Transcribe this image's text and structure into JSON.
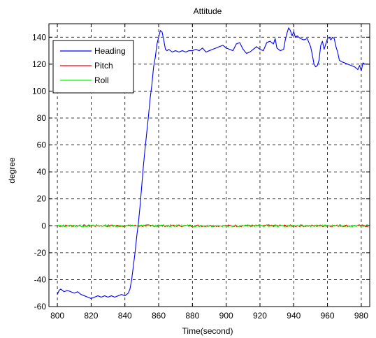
{
  "chart_data": {
    "type": "line",
    "title": "Attitude",
    "xlabel": "Time(second)",
    "ylabel": "degree",
    "xlim": [
      795,
      985
    ],
    "ylim": [
      -60,
      150
    ],
    "xticks": [
      800,
      820,
      840,
      860,
      880,
      900,
      920,
      940,
      960,
      980
    ],
    "yticks": [
      -60,
      -40,
      -20,
      0,
      20,
      40,
      60,
      80,
      100,
      120,
      140
    ],
    "grid": true,
    "legend_position": "top-left",
    "series": [
      {
        "name": "Heading",
        "color": "#0000ff",
        "x": [
          800,
          801,
          802,
          804,
          806,
          808,
          810,
          812,
          814,
          816,
          818,
          820,
          822,
          824,
          826,
          828,
          830,
          832,
          834,
          836,
          838,
          840,
          841,
          842,
          843,
          844,
          845,
          846,
          847,
          848,
          849,
          850,
          851,
          852,
          853,
          854,
          855,
          856,
          857,
          858,
          859,
          860,
          861,
          862,
          863,
          864,
          865,
          866,
          868,
          870,
          872,
          874,
          876,
          878,
          880,
          882,
          884,
          886,
          888,
          890,
          892,
          894,
          896,
          898,
          900,
          902,
          904,
          906,
          908,
          910,
          912,
          914,
          916,
          918,
          920,
          922,
          924,
          926,
          928,
          929,
          930,
          932,
          934,
          935,
          936,
          937,
          938,
          939,
          940,
          941,
          942,
          944,
          946,
          948,
          950,
          951,
          952,
          953,
          954,
          955,
          956,
          957,
          958,
          959,
          960,
          961,
          962,
          963,
          964,
          965,
          966,
          967,
          968,
          970,
          972,
          974,
          976,
          978,
          979,
          980,
          981,
          982,
          983,
          984
        ],
        "y": [
          -51,
          -48,
          -47,
          -49,
          -48,
          -49,
          -50,
          -49,
          -51,
          -52,
          -53,
          -54,
          -53,
          -52,
          -53,
          -52,
          -53,
          -52,
          -53,
          -52,
          -51,
          -52,
          -51,
          -50,
          -47,
          -40,
          -30,
          -20,
          -8,
          2,
          15,
          30,
          45,
          58,
          70,
          82,
          95,
          105,
          118,
          125,
          135,
          140,
          145,
          144,
          138,
          131,
          130,
          131,
          129,
          130,
          129,
          130,
          129,
          130,
          130,
          131,
          130,
          132,
          129,
          130,
          131,
          132,
          133,
          134,
          132,
          131,
          130,
          135,
          136,
          131,
          128,
          129,
          131,
          133,
          131,
          130,
          136,
          137,
          135,
          139,
          132,
          130,
          131,
          138,
          143,
          147,
          145,
          141,
          144,
          140,
          141,
          139,
          138,
          139,
          133,
          127,
          120,
          118,
          119,
          123,
          134,
          137,
          131,
          135,
          139,
          140,
          138,
          140,
          139,
          133,
          129,
          123,
          122,
          121,
          120,
          119,
          118,
          116,
          119,
          115,
          121,
          120,
          120,
          120
        ]
      },
      {
        "name": "Pitch",
        "color": "#ff0000",
        "x": [
          800,
          984
        ],
        "y": [
          0,
          0
        ]
      },
      {
        "name": "Roll",
        "color": "#00ff00",
        "x": [
          800,
          984
        ],
        "y": [
          0,
          0
        ]
      }
    ]
  }
}
